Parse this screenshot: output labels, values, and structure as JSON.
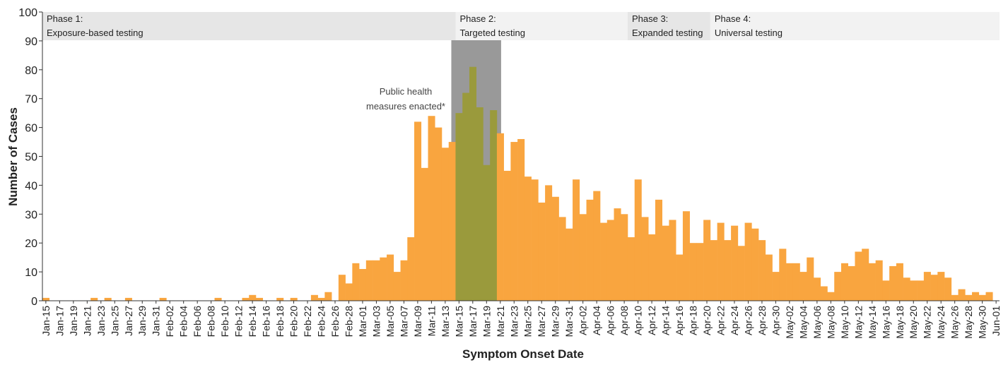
{
  "chart_data": {
    "type": "bar",
    "x_label": "Symptom Onset Date",
    "y_label": "Number of Cases",
    "categories": [
      "Jan-15",
      null,
      "Jan-17",
      null,
      "Jan-19",
      null,
      "Jan-21",
      null,
      "Jan-23",
      null,
      "Jan-25",
      null,
      "Jan-27",
      null,
      "Jan-29",
      null,
      "Jan-31",
      null,
      "Feb-02",
      null,
      "Feb-04",
      null,
      "Feb-06",
      null,
      "Feb-08",
      null,
      "Feb-10",
      null,
      "Feb-12",
      null,
      "Feb-14",
      null,
      "Feb-16",
      null,
      "Feb-18",
      null,
      "Feb-20",
      null,
      "Feb-22",
      null,
      "Feb-24",
      null,
      "Feb-26",
      null,
      "Feb-28",
      null,
      "Mar-01",
      null,
      "Mar-03",
      null,
      "Mar-05",
      null,
      "Mar-07",
      null,
      "Mar-09",
      null,
      "Mar-11",
      null,
      "Mar-13",
      null,
      "Mar-15",
      null,
      "Mar-17",
      null,
      "Mar-19",
      null,
      "Mar-21",
      null,
      "Mar-23",
      null,
      "Mar-25",
      null,
      "Mar-27",
      null,
      "Mar-29",
      null,
      "Mar-31",
      null,
      "Apr-02",
      null,
      "Apr-04",
      null,
      "Apr-06",
      null,
      "Apr-08",
      null,
      "Apr-10",
      null,
      "Apr-12",
      null,
      "Apr-14",
      null,
      "Apr-16",
      null,
      "Apr-18",
      null,
      "Apr-20",
      null,
      "Apr-22",
      null,
      "Apr-24",
      null,
      "Apr-26",
      null,
      "Apr-28",
      null,
      "Apr-30",
      null,
      "May-02",
      null,
      "May-04",
      null,
      "May-06",
      null,
      "May-08",
      null,
      "May-10",
      null,
      "May-12",
      null,
      "May-14",
      null,
      "May-16",
      null,
      "May-18",
      null,
      "May-20",
      null,
      "May-22",
      null,
      "May-24",
      null,
      "May-26",
      null,
      "May-28",
      null,
      "May-30",
      null,
      "Jun-01"
    ],
    "values": [
      1,
      0,
      0,
      0,
      0,
      0,
      0,
      1,
      0,
      1,
      0,
      0,
      1,
      0,
      0,
      0,
      0,
      1,
      0,
      0,
      0,
      0,
      0,
      0,
      0,
      1,
      0,
      0,
      0,
      1,
      2,
      1,
      0,
      0,
      1,
      0,
      1,
      0,
      0,
      2,
      1,
      3,
      0,
      9,
      6,
      13,
      11,
      14,
      14,
      15,
      16,
      10,
      14,
      22,
      62,
      46,
      64,
      60,
      53,
      55,
      65,
      72,
      81,
      67,
      47,
      66,
      58,
      45,
      55,
      56,
      43,
      42,
      34,
      40,
      36,
      29,
      25,
      42,
      30,
      35,
      38,
      27,
      28,
      32,
      30,
      22,
      42,
      29,
      23,
      35,
      26,
      28,
      16,
      31,
      20,
      20,
      28,
      21,
      27,
      21,
      26,
      19,
      27,
      25,
      21,
      16,
      10,
      18,
      13,
      13,
      10,
      15,
      8,
      5,
      3,
      10,
      13,
      12,
      17,
      18,
      13,
      14,
      7,
      12,
      13,
      8,
      7,
      7,
      10,
      9,
      10,
      8,
      2,
      4,
      2,
      3,
      2,
      3,
      0
    ],
    "color": "#f9a53f",
    "highlight_color": "#9a9a3c",
    "highlight_band_color": "#999999",
    "ylim": [
      0,
      100
    ],
    "yticks": [
      0,
      10,
      20,
      30,
      40,
      50,
      60,
      70,
      80,
      90,
      100
    ],
    "grid": false,
    "annotation": [
      "Public health",
      "measures enacted*"
    ],
    "phases": [
      {
        "name": "Phase 1:",
        "description": "Exposure-based testing",
        "color": "#e6e6e6"
      },
      {
        "name": "Phase 2:",
        "description": "Targeted testing",
        "color": "#f2f2f2"
      },
      {
        "name": "Phase 3:",
        "description": "Expanded testing",
        "color": "#e6e6e6"
      },
      {
        "name": "Phase 4:",
        "description": "Universal testing",
        "color": "#f2f2f2"
      }
    ]
  }
}
